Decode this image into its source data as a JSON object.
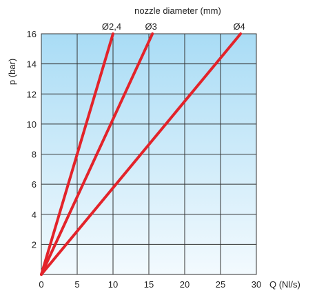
{
  "chart_data": {
    "type": "line",
    "title": "nozzle diameter (mm)",
    "xlabel": "Q (Nl/s)",
    "ylabel": "p (bar)",
    "xlim": [
      0,
      30
    ],
    "ylim": [
      0,
      16
    ],
    "x_ticks": [
      "0",
      "5",
      "10",
      "15",
      "20",
      "25",
      "30"
    ],
    "y_ticks": [
      "2",
      "4",
      "6",
      "8",
      "10",
      "12",
      "14",
      "16"
    ],
    "grid": true,
    "colors": {
      "line": "#e3232a",
      "grid": "#333333",
      "background_top": "#a9dcf5",
      "background_bottom": "#f3fafe"
    },
    "series": [
      {
        "name": "Ø2,4",
        "x": [
          0,
          10
        ],
        "y": [
          0,
          16
        ]
      },
      {
        "name": "Ø3",
        "x": [
          0,
          15.5
        ],
        "y": [
          0,
          16
        ]
      },
      {
        "name": "Ø4",
        "x": [
          0,
          27.8
        ],
        "y": [
          0,
          16
        ]
      }
    ]
  }
}
